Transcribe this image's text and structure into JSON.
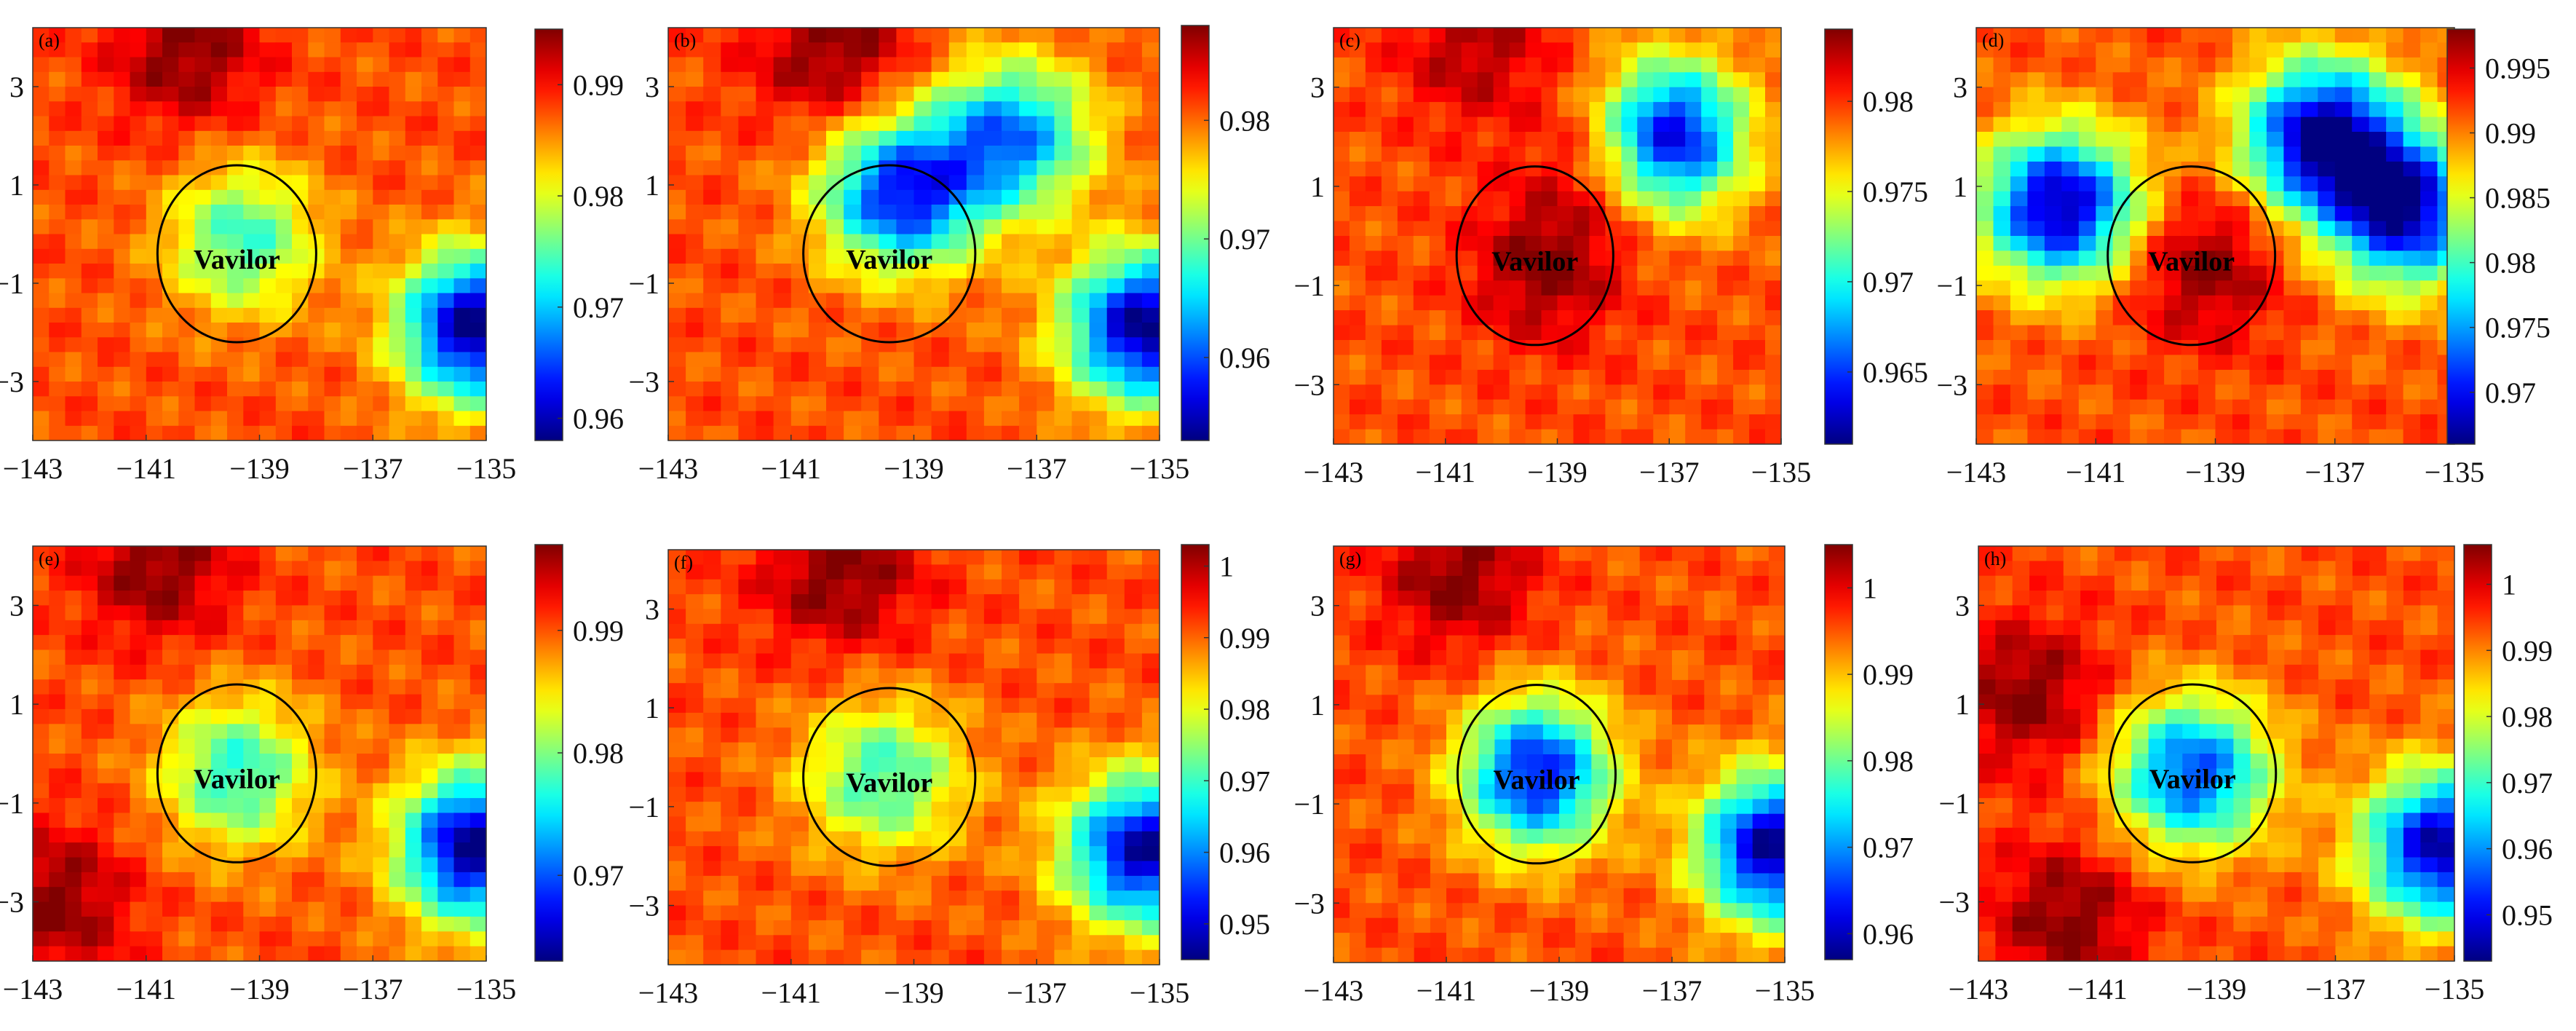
{
  "figure": {
    "ellipse_label": "Vavilor",
    "colormap": "jet",
    "x_ticks": [
      "−143",
      "−141",
      "−139",
      "−137",
      "−135"
    ],
    "y_ticks": [
      "3",
      "1",
      "−1",
      "−3"
    ],
    "x_range": [
      -143,
      -135
    ],
    "y_range": [
      -4.2,
      4.2
    ],
    "ellipse_center": [
      -139.4,
      -0.4
    ],
    "ellipse_radii": [
      1.4,
      1.8
    ]
  },
  "chart_data": [
    {
      "type": "heatmap",
      "panel_label": "(a)",
      "x": [
        -143,
        -141,
        -139,
        -137,
        -135
      ],
      "y": [
        -3,
        -1,
        1,
        3
      ],
      "colorbar": {
        "range": [
          0.958,
          0.995
        ],
        "ticks": [
          "0.96",
          "0.97",
          "0.98",
          "0.99"
        ],
        "tick_values": [
          0.96,
          0.97,
          0.98,
          0.99
        ]
      },
      "hotspots": [
        {
          "x": -140.3,
          "y": 3.7,
          "value": 0.995
        },
        {
          "x": -139.3,
          "y": -0.1,
          "value": 0.974
        },
        {
          "x": -135.2,
          "y": -1.9,
          "value": 0.958
        }
      ]
    },
    {
      "type": "heatmap",
      "panel_label": "(b)",
      "x": [
        -143,
        -141,
        -139,
        -137,
        -135
      ],
      "y": [
        -3,
        -1,
        1,
        3
      ],
      "colorbar": {
        "range": [
          0.953,
          0.988
        ],
        "ticks": [
          "0.96",
          "0.97",
          "0.98"
        ],
        "tick_values": [
          0.96,
          0.97,
          0.98
        ]
      },
      "hotspots": [
        {
          "x": -140.3,
          "y": 3.7,
          "value": 0.988
        },
        {
          "x": -139.2,
          "y": 0.8,
          "value": 0.958
        },
        {
          "x": -137.4,
          "y": 2.0,
          "value": 0.962
        },
        {
          "x": -135.2,
          "y": -1.9,
          "value": 0.953
        }
      ]
    },
    {
      "type": "heatmap",
      "panel_label": "(c)",
      "x": [
        -143,
        -141,
        -139,
        -137,
        -135
      ],
      "y": [
        -3,
        -1,
        1,
        3
      ],
      "colorbar": {
        "range": [
          0.961,
          0.984
        ],
        "ticks": [
          "0.965",
          "0.97",
          "0.975",
          "0.98"
        ],
        "tick_values": [
          0.965,
          0.97,
          0.975,
          0.98
        ]
      },
      "hotspots": [
        {
          "x": -139.2,
          "y": -0.6,
          "value": 0.984
        },
        {
          "x": -137.0,
          "y": 2.0,
          "value": 0.962
        },
        {
          "x": -138.0,
          "y": 1.6,
          "value": 0.983
        },
        {
          "x": -140.5,
          "y": 3.8,
          "value": 0.983
        }
      ]
    },
    {
      "type": "heatmap",
      "panel_label": "(d)",
      "x": [
        -143,
        -141,
        -139,
        -137,
        -135
      ],
      "y": [
        -3,
        -1,
        1,
        3
      ],
      "colorbar": {
        "range": [
          0.966,
          0.998
        ],
        "ticks": [
          "0.97",
          "0.975",
          "0.98",
          "0.985",
          "0.99",
          "0.995"
        ],
        "tick_values": [
          0.97,
          0.975,
          0.98,
          0.985,
          0.99,
          0.995
        ]
      },
      "hotspots": [
        {
          "x": -139.2,
          "y": -0.6,
          "value": 0.998
        },
        {
          "x": -141.6,
          "y": 0.6,
          "value": 0.967
        },
        {
          "x": -137.2,
          "y": 2.0,
          "value": 0.966
        },
        {
          "x": -135.8,
          "y": 0.5,
          "value": 0.968
        }
      ]
    },
    {
      "type": "heatmap",
      "panel_label": "(e)",
      "x": [
        -143,
        -141,
        -139,
        -137,
        -135
      ],
      "y": [
        -3,
        -1,
        1,
        3
      ],
      "colorbar": {
        "range": [
          0.963,
          0.997
        ],
        "ticks": [
          "0.97",
          "0.98",
          "0.99"
        ],
        "tick_values": [
          0.97,
          0.98,
          0.99
        ]
      },
      "hotspots": [
        {
          "x": -140.8,
          "y": 3.8,
          "value": 0.997
        },
        {
          "x": -142.6,
          "y": -3.0,
          "value": 0.997
        },
        {
          "x": -139.4,
          "y": -0.4,
          "value": 0.977
        },
        {
          "x": -135.2,
          "y": -1.9,
          "value": 0.963
        }
      ]
    },
    {
      "type": "heatmap",
      "panel_label": "(f)",
      "x": [
        -143,
        -141,
        -139,
        -137,
        -135
      ],
      "y": [
        -3,
        -1,
        1,
        3
      ],
      "colorbar": {
        "range": [
          0.945,
          1.003
        ],
        "ticks": [
          "0.95",
          "0.96",
          "0.97",
          "0.98",
          "0.99",
          "1"
        ],
        "tick_values": [
          0.95,
          0.96,
          0.97,
          0.98,
          0.99,
          1.0
        ]
      },
      "hotspots": [
        {
          "x": -140.2,
          "y": 3.7,
          "value": 1.003
        },
        {
          "x": -139.5,
          "y": -0.4,
          "value": 0.97
        },
        {
          "x": -135.2,
          "y": -1.9,
          "value": 0.947
        }
      ]
    },
    {
      "type": "heatmap",
      "panel_label": "(g)",
      "x": [
        -143,
        -141,
        -139,
        -137,
        -135
      ],
      "y": [
        -3,
        -1,
        1,
        3
      ],
      "colorbar": {
        "range": [
          0.957,
          1.005
        ],
        "ticks": [
          "0.96",
          "0.97",
          "0.98",
          "0.99",
          "1"
        ],
        "tick_values": [
          0.96,
          0.97,
          0.98,
          0.99,
          1.0
        ]
      },
      "hotspots": [
        {
          "x": -140.8,
          "y": 3.6,
          "value": 1.005
        },
        {
          "x": -139.4,
          "y": -0.4,
          "value": 0.963
        },
        {
          "x": -135.2,
          "y": -1.9,
          "value": 0.958
        }
      ]
    },
    {
      "type": "heatmap",
      "panel_label": "(h)",
      "x": [
        -143,
        -141,
        -139,
        -137,
        -135
      ],
      "y": [
        -3,
        -1,
        1,
        3
      ],
      "colorbar": {
        "range": [
          0.943,
          1.006
        ],
        "ticks": [
          "0.95",
          "0.96",
          "0.97",
          "0.98",
          "0.99",
          "1"
        ],
        "tick_values": [
          0.95,
          0.96,
          0.97,
          0.98,
          0.99,
          1.0
        ]
      },
      "hotspots": [
        {
          "x": -142.2,
          "y": 1.2,
          "value": 1.006
        },
        {
          "x": -141.5,
          "y": -3.3,
          "value": 1.006
        },
        {
          "x": -139.4,
          "y": -0.4,
          "value": 0.955
        },
        {
          "x": -135.2,
          "y": -1.9,
          "value": 0.945
        }
      ]
    }
  ]
}
